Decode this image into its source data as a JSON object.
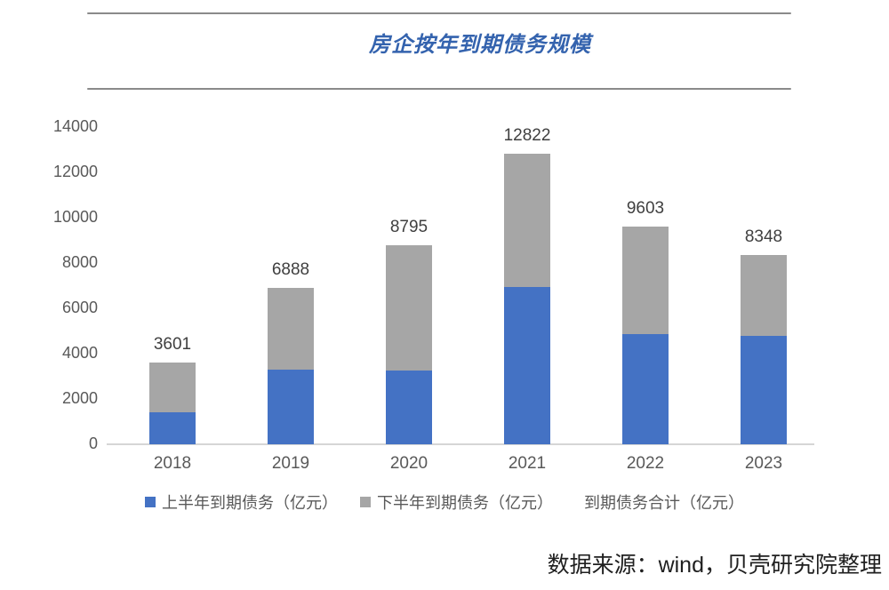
{
  "header": {
    "title": "房企按年到期债务规模"
  },
  "chart_data": {
    "type": "bar",
    "stacked": true,
    "title": "房企按年到期债务规模",
    "categories": [
      "2018",
      "2019",
      "2020",
      "2021",
      "2022",
      "2023"
    ],
    "series": [
      {
        "name": "上半年到期债务（亿元）",
        "color": "#4472c4",
        "values": [
          1400,
          3300,
          3250,
          6950,
          4850,
          4800
        ]
      },
      {
        "name": "下半年到期债务（亿元）",
        "color": "#a6a6a6",
        "values": [
          2201,
          3588,
          5545,
          5872,
          4753,
          3548
        ]
      }
    ],
    "totals": {
      "name": "到期债务合计（亿元）",
      "values": [
        3601,
        6888,
        8795,
        12822,
        9603,
        8348
      ]
    },
    "xlabel": "",
    "ylabel": "",
    "ylim": [
      0,
      14000
    ],
    "y_ticks": [
      0,
      2000,
      4000,
      6000,
      8000,
      10000,
      12000,
      14000
    ],
    "grid": false,
    "legend_position": "bottom"
  },
  "legend": {
    "items": [
      {
        "label": "上半年到期债务（亿元）",
        "color": "#4472c4"
      },
      {
        "label": "下半年到期债务（亿元）",
        "color": "#a6a6a6"
      },
      {
        "label": "到期债务合计（亿元）",
        "color": null
      }
    ]
  },
  "source": {
    "text": "数据来源：wind，贝壳研究院整理"
  },
  "colors": {
    "accent_blue": "#4472c4",
    "accent_gray": "#a6a6a6",
    "title_blue": "#3463ae",
    "axis_text": "#595959",
    "label_text": "#3f3f3f",
    "axis_line": "#d6d6d6",
    "rule_gray": "#8a8a8a"
  }
}
